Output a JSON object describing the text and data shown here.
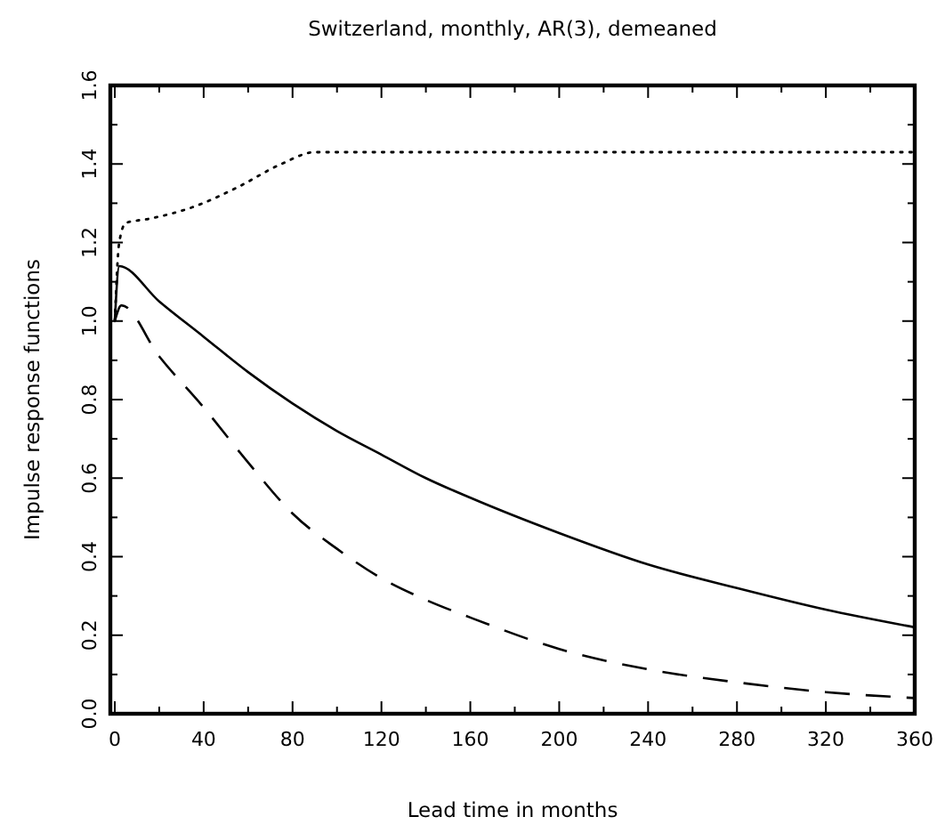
{
  "chart_data": {
    "type": "line",
    "title": "Switzerland, monthly, AR(3), demeaned",
    "xlabel": "Lead time in months",
    "ylabel": "Impulse response functions",
    "xlim": [
      -2,
      360
    ],
    "ylim": [
      0,
      1.6
    ],
    "xticks": [
      0,
      {
        "value": 20,
        "label": null
      },
      40,
      {
        "value": 60,
        "label": null
      },
      80,
      {
        "value": 100,
        "label": null
      },
      120,
      {
        "value": 140,
        "label": null
      },
      160,
      {
        "value": 180,
        "label": null
      },
      200,
      {
        "value": 220,
        "label": null
      },
      240,
      {
        "value": 260,
        "label": null
      },
      280,
      {
        "value": 300,
        "label": null
      },
      320,
      {
        "value": 340,
        "label": null
      },
      360
    ],
    "yticks": [
      {
        "value": 0,
        "label": "0.0"
      },
      {
        "value": 0.1,
        "label": null
      },
      0.2,
      {
        "value": 0.3,
        "label": null
      },
      0.4,
      {
        "value": 0.5,
        "label": null
      },
      0.6,
      {
        "value": 0.7,
        "label": null
      },
      0.8,
      {
        "value": 0.9,
        "label": null
      },
      {
        "value": 1.0,
        "label": "1.0"
      },
      {
        "value": 1.1,
        "label": null
      },
      1.2,
      {
        "value": 1.3,
        "label": null
      },
      1.4,
      {
        "value": 1.5,
        "label": null
      },
      1.6
    ],
    "grid": false,
    "marker": "none",
    "series": [
      {
        "color": "#000000",
        "line_style": "solid",
        "x": [
          0,
          2,
          20,
          40,
          60,
          80,
          100,
          120,
          140,
          160,
          200,
          240,
          280,
          320,
          360
        ],
        "values": [
          1.0,
          1.14,
          1.05,
          0.96,
          0.87,
          0.79,
          0.72,
          0.66,
          0.6,
          0.55,
          0.46,
          0.38,
          0.32,
          0.265,
          0.22
        ]
      },
      {
        "color": "#000000",
        "line_style": "dashed",
        "x": [
          0,
          3,
          20,
          40,
          60,
          80,
          100,
          120,
          140,
          160,
          200,
          240,
          280,
          320,
          360
        ],
        "values": [
          1.0,
          1.04,
          0.91,
          0.78,
          0.64,
          0.51,
          0.42,
          0.345,
          0.29,
          0.245,
          0.165,
          0.113,
          0.08,
          0.055,
          0.04
        ]
      },
      {
        "color": "#000000",
        "line_style": "dotted",
        "x": [
          0,
          2,
          5,
          15,
          35,
          55,
          75,
          90,
          360
        ],
        "values": [
          1.0,
          1.2,
          1.25,
          1.26,
          1.29,
          1.34,
          1.4,
          1.43,
          1.43
        ]
      }
    ]
  }
}
